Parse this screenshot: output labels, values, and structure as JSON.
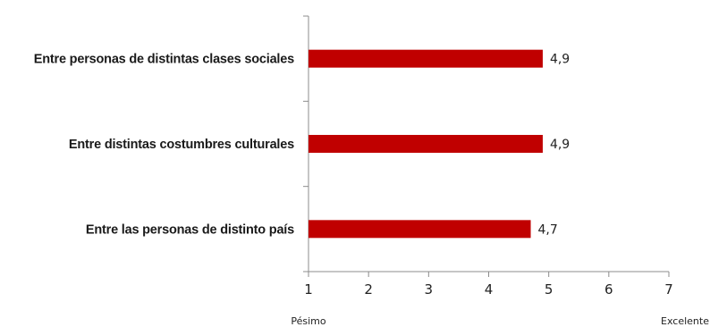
{
  "chart_data": {
    "type": "bar",
    "orientation": "horizontal",
    "categories": [
      "Entre personas de distintas clases sociales",
      "Entre distintas costumbres culturales",
      "Entre las personas de distinto país"
    ],
    "values": [
      4.9,
      4.9,
      4.7
    ],
    "data_labels": [
      "4,9",
      "4,9",
      "4,7"
    ],
    "xlim": [
      1,
      7
    ],
    "x_ticks": [
      1,
      2,
      3,
      4,
      5,
      6,
      7
    ],
    "x_tick_labels": [
      "1",
      "2",
      "3",
      "4",
      "5",
      "6",
      "7"
    ],
    "x_min_label": "Pésimo",
    "x_max_label": "Excelente",
    "grid": false,
    "legend": "none",
    "bar_color": "#c00000",
    "axis_color": "#8c8c8c"
  }
}
